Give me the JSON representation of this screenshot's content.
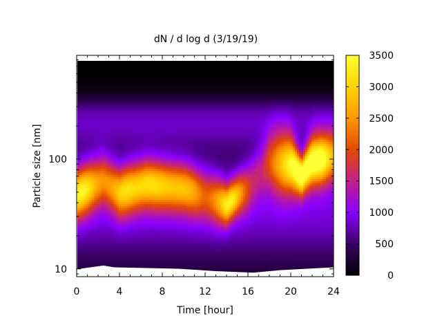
{
  "chart_data": {
    "type": "heatmap",
    "title": "dN / d log d (3/19/19)",
    "xlabel": "Time [hour]",
    "ylabel": "Particle size [nm]",
    "xlim": [
      0,
      24
    ],
    "ylim": [
      8.5,
      880
    ],
    "y_scale": "log",
    "x_ticks": [
      "0",
      "4",
      "8",
      "12",
      "16",
      "20",
      "24"
    ],
    "y_ticks": [
      "10",
      "100"
    ],
    "colorbar": {
      "min": 0,
      "max": 3500,
      "ticks": [
        "0",
        "500",
        "1000",
        "1500",
        "2000",
        "2500",
        "3000",
        "3500"
      ]
    },
    "palette": [
      "#000000",
      "#3a0066",
      "#8a00ff",
      "#c2208a",
      "#e34a00",
      "#ff9800",
      "#ffd400",
      "#ffff33"
    ],
    "background": "#ffffff",
    "grid": false,
    "features": {
      "peak_diameter_profile_nm": [
        {
          "t": 0,
          "d": 48
        },
        {
          "t": 2.5,
          "d": 65
        },
        {
          "t": 4,
          "d": 50
        },
        {
          "t": 6.5,
          "d": 60
        },
        {
          "t": 10,
          "d": 55
        },
        {
          "t": 14,
          "d": 38
        },
        {
          "t": 16,
          "d": 55
        },
        {
          "t": 18,
          "d": 95
        },
        {
          "t": 20,
          "d": 90
        },
        {
          "t": 21,
          "d": 70
        },
        {
          "t": 22,
          "d": 95
        },
        {
          "t": 24,
          "d": 105
        }
      ],
      "lower_cutoff_nm": [
        {
          "t": 0,
          "d": 10
        },
        {
          "t": 2.5,
          "d": 10.8
        },
        {
          "t": 3.5,
          "d": 10.4
        },
        {
          "t": 9.5,
          "d": 10.1
        },
        {
          "t": 13,
          "d": 9.6
        },
        {
          "t": 16.5,
          "d": 9.3
        },
        {
          "t": 19,
          "d": 9.8
        },
        {
          "t": 24,
          "d": 10.4
        }
      ],
      "upper_cutoff_nm": 880
    }
  }
}
